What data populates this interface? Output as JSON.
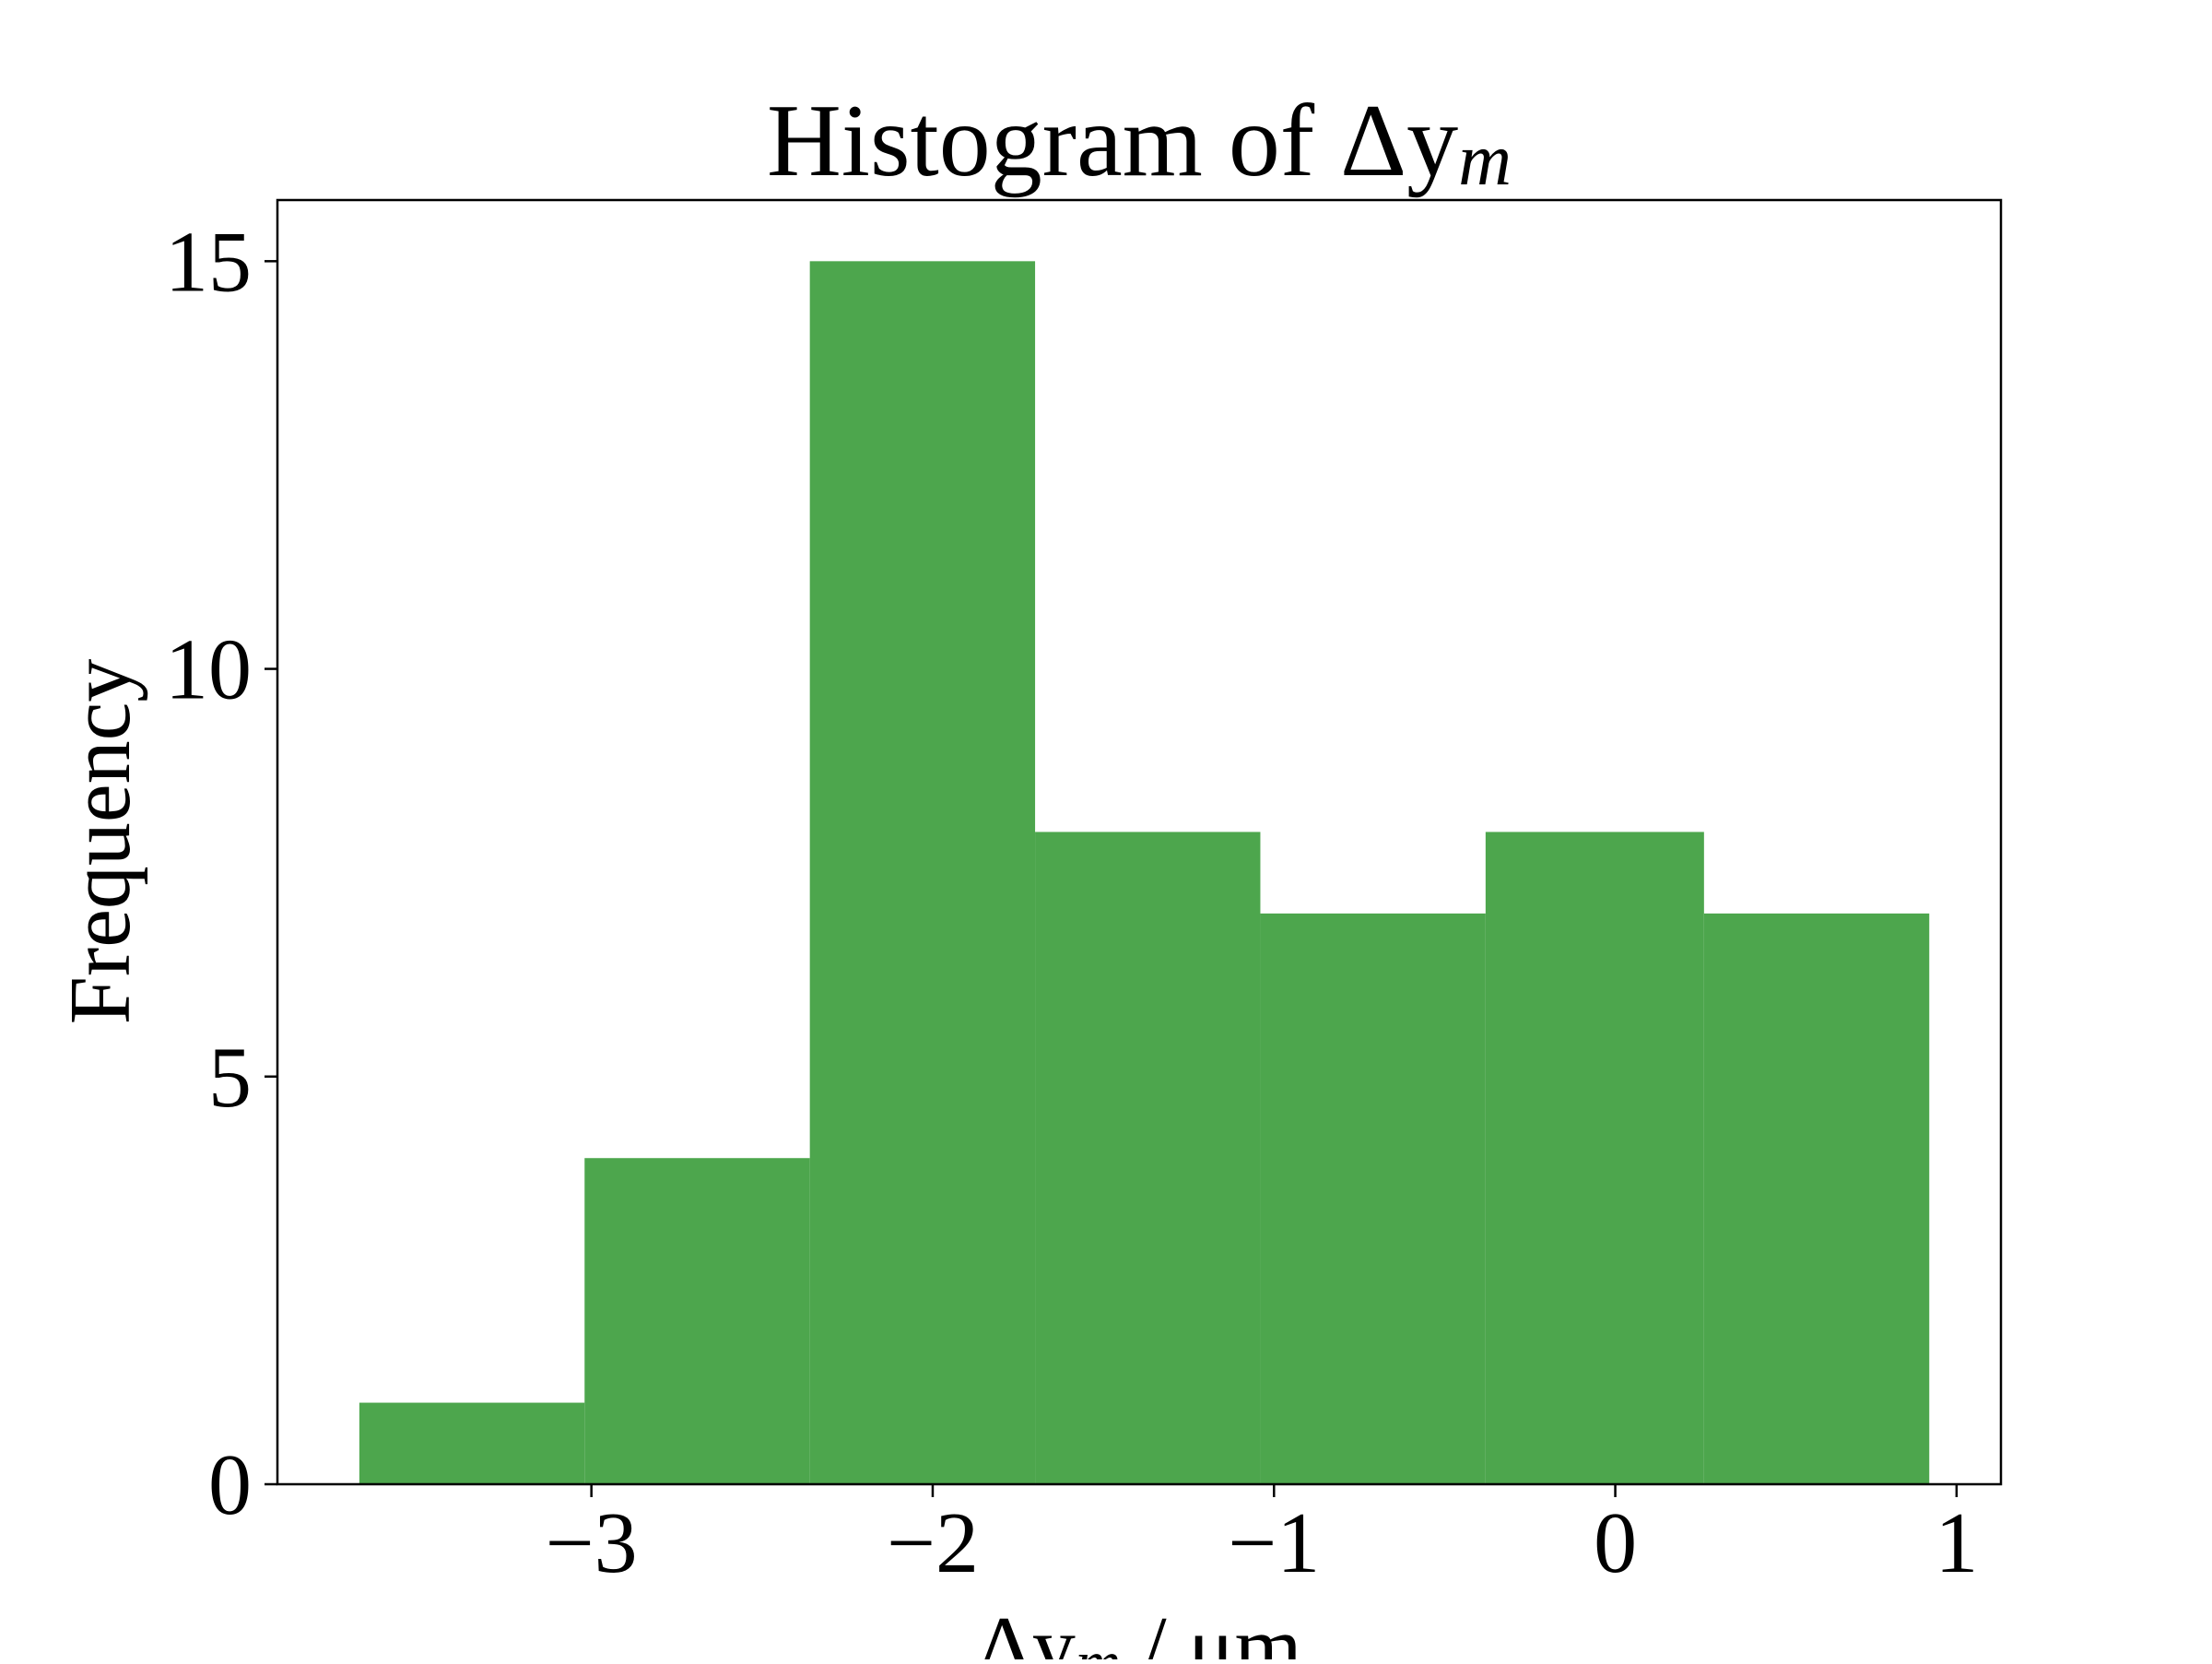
{
  "chart_data": {
    "type": "bar",
    "title": "Histogram of Δy",
    "title_subscript": "m",
    "xlabel": "Δy",
    "xlabel_subscript": "m",
    "xlabel_unit": " / μm",
    "ylabel": "Frequency",
    "bin_edges": [
      -3.68,
      -3.02,
      -2.36,
      -1.7,
      -1.04,
      -0.38,
      0.26,
      0.92
    ],
    "values": [
      1,
      4,
      15,
      8,
      7,
      8,
      7
    ],
    "xlim": [
      -3.92,
      1.13
    ],
    "ylim": [
      0,
      15.75
    ],
    "xticks": [
      -3,
      -2,
      -1,
      0,
      1
    ],
    "xtick_labels": [
      "−3",
      "−2",
      "−1",
      "0",
      "1"
    ],
    "yticks": [
      0,
      5,
      10,
      15
    ],
    "ytick_labels": [
      "0",
      "5",
      "10",
      "15"
    ],
    "bar_color": "#4da64d",
    "grid": false,
    "legend": "none"
  }
}
